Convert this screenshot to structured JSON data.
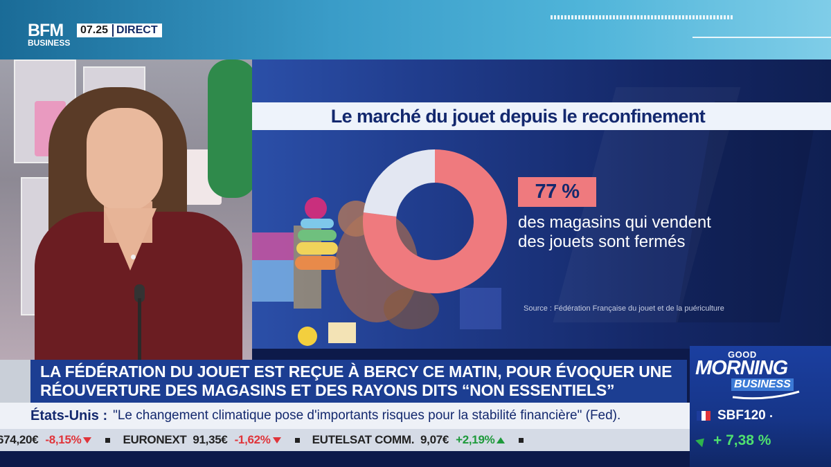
{
  "header": {
    "logo_main": "BFM",
    "logo_sub": "BUSINESS",
    "time": "07.25",
    "live_label": "DIRECT"
  },
  "infographic": {
    "title": "Le marché du jouet depuis le reconfinement",
    "percentage": "77 %",
    "caption_line1": "des magasins qui vendent",
    "caption_line2": "des jouets sont fermés",
    "source": "Source : Fédération Française du jouet et de la puériculture",
    "colors": {
      "highlight": "#ef7a7e",
      "remainder": "#e3e7f2",
      "title_text": "#13286e"
    }
  },
  "chart_data": {
    "type": "pie",
    "title": "Le marché du jouet depuis le reconfinement",
    "donut": true,
    "series": [
      {
        "value": 77,
        "color": "#ef7a7e"
      },
      {
        "value": 23,
        "color": "#e3e7f2"
      }
    ]
  },
  "headline": {
    "line1": "LA FÉDÉRATION DU JOUET EST REÇUE À BERCY CE MATIN, POUR ÉVOQUER UNE",
    "line2": "RÉOUVERTURE DES MAGASINS ET DES RAYONS DITS “NON ESSENTIELS”"
  },
  "quote": {
    "country": "États-Unis :",
    "text": "\"Le changement climatique pose d'importants risques pour la stabilité financière\" (Fed)."
  },
  "ticker": [
    {
      "name": "",
      "price": "674,20€",
      "change": "-8,15%",
      "direction": "down"
    },
    {
      "name": "EURONEXT",
      "price": "91,35€",
      "change": "-1,62%",
      "direction": "down"
    },
    {
      "name": "EUTELSAT COMM.",
      "price": "9,07€",
      "change": "+2,19%",
      "direction": "up"
    }
  ],
  "show": {
    "good": "GOOD",
    "morning": "MORNING",
    "business": "BUSINESS"
  },
  "index": {
    "name": "SBF120",
    "change": "+ 7,38 %",
    "flag_colors": [
      "#1d3c9c",
      "#ffffff",
      "#e0343a"
    ]
  }
}
